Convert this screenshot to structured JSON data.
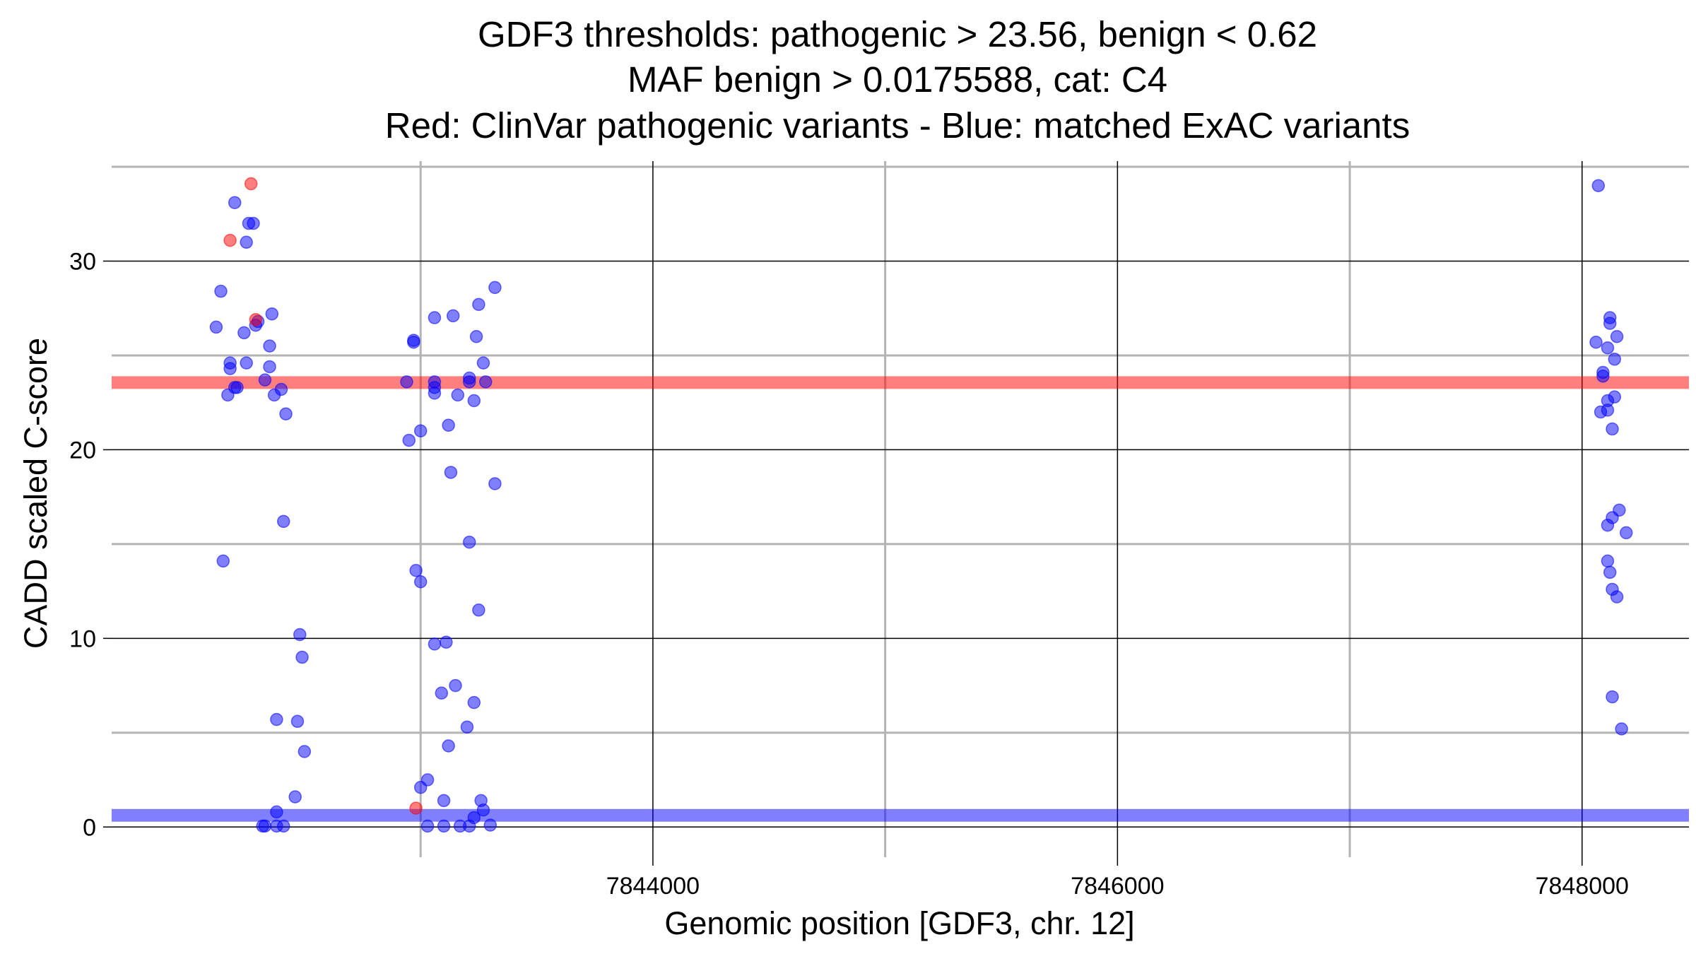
{
  "chart_data": {
    "type": "scatter",
    "title_lines": [
      "GDF3 thresholds: pathogenic > 23.56, benign < 0.62",
      "MAF benign > 0.0175588, cat: C4",
      "Red: ClinVar pathogenic variants - Blue: matched ExAC variants"
    ],
    "xlabel": "Genomic position [GDF3, chr. 12]",
    "ylabel": "CADD scaled C-score",
    "xlim": [
      7841670,
      7848460
    ],
    "ylim": [
      -1.6,
      35.3
    ],
    "x_ticks": [
      7844000,
      7846000,
      7848000
    ],
    "x_tick_labels": [
      "7844000",
      "7846000",
      "7848000"
    ],
    "x_minor_gridlines": [
      7843000,
      7845000,
      7847000
    ],
    "y_ticks": [
      0,
      10,
      20,
      30
    ],
    "y_tick_labels": [
      "0",
      "10",
      "20",
      "30"
    ],
    "y_minor_gridlines": [
      5,
      15,
      25,
      35
    ],
    "grid": true,
    "colors": {
      "pathogenic": "#ff0000",
      "benign": "#0000ff",
      "major_grid": "#000000",
      "minor_grid": "#b3b3b3"
    },
    "thresholds": {
      "pathogenic": 23.56,
      "benign": 0.62
    },
    "series": [
      {
        "key": "clinvar_pathogenic",
        "color": "#ff0000",
        "points": [
          [
            7842270,
            34.1
          ],
          [
            7842180,
            31.1
          ],
          [
            7842290,
            26.9
          ],
          [
            7842980,
            1.0
          ]
        ]
      },
      {
        "key": "exac_matched",
        "color": "#0000ff",
        "points": [
          [
            7842200,
            33.1
          ],
          [
            7842250,
            31.0
          ],
          [
            7842260,
            32.0
          ],
          [
            7842280,
            32.0
          ],
          [
            7842140,
            28.4
          ],
          [
            7842120,
            26.5
          ],
          [
            7842180,
            24.6
          ],
          [
            7842180,
            24.3
          ],
          [
            7842250,
            24.6
          ],
          [
            7842210,
            23.3
          ],
          [
            7842200,
            23.3
          ],
          [
            7842170,
            22.9
          ],
          [
            7842240,
            26.2
          ],
          [
            7842290,
            26.6
          ],
          [
            7842300,
            26.8
          ],
          [
            7842330,
            23.7
          ],
          [
            7842350,
            25.5
          ],
          [
            7842350,
            24.4
          ],
          [
            7842360,
            27.2
          ],
          [
            7842370,
            22.9
          ],
          [
            7842400,
            23.2
          ],
          [
            7842420,
            21.9
          ],
          [
            7842410,
            16.2
          ],
          [
            7842150,
            14.1
          ],
          [
            7842380,
            5.7
          ],
          [
            7842470,
            5.6
          ],
          [
            7842480,
            10.2
          ],
          [
            7842490,
            9.0
          ],
          [
            7842500,
            4.0
          ],
          [
            7842460,
            1.6
          ],
          [
            7842380,
            0.8
          ],
          [
            7842320,
            0.05
          ],
          [
            7842330,
            0.05
          ],
          [
            7842380,
            0.05
          ],
          [
            7842410,
            0.05
          ],
          [
            7842950,
            20.5
          ],
          [
            7842940,
            23.6
          ],
          [
            7842970,
            25.8
          ],
          [
            7842970,
            25.7
          ],
          [
            7842980,
            13.6
          ],
          [
            7843000,
            13.0
          ],
          [
            7843000,
            21.0
          ],
          [
            7843030,
            2.5
          ],
          [
            7843000,
            2.1
          ],
          [
            7843030,
            0.05
          ],
          [
            7843060,
            27.0
          ],
          [
            7843060,
            23.3
          ],
          [
            7843060,
            23.6
          ],
          [
            7843060,
            23.0
          ],
          [
            7843060,
            9.7
          ],
          [
            7843090,
            7.1
          ],
          [
            7843100,
            1.4
          ],
          [
            7843100,
            0.05
          ],
          [
            7843110,
            9.8
          ],
          [
            7843120,
            21.3
          ],
          [
            7843120,
            4.3
          ],
          [
            7843130,
            18.8
          ],
          [
            7843140,
            27.1
          ],
          [
            7843150,
            7.5
          ],
          [
            7843160,
            22.9
          ],
          [
            7843170,
            0.05
          ],
          [
            7843200,
            5.3
          ],
          [
            7843210,
            0.05
          ],
          [
            7843210,
            23.8
          ],
          [
            7843210,
            23.6
          ],
          [
            7843210,
            15.1
          ],
          [
            7843230,
            0.5
          ],
          [
            7843230,
            22.6
          ],
          [
            7843230,
            6.6
          ],
          [
            7843240,
            26.0
          ],
          [
            7843250,
            27.7
          ],
          [
            7843250,
            11.5
          ],
          [
            7843260,
            1.4
          ],
          [
            7843270,
            0.9
          ],
          [
            7843270,
            24.6
          ],
          [
            7843280,
            23.6
          ],
          [
            7843300,
            0.1
          ],
          [
            7843320,
            28.6
          ],
          [
            7843320,
            18.2
          ],
          [
            7848070,
            34.0
          ],
          [
            7848060,
            25.7
          ],
          [
            7848090,
            24.1
          ],
          [
            7848090,
            23.9
          ],
          [
            7848080,
            22.0
          ],
          [
            7848110,
            22.1
          ],
          [
            7848110,
            22.6
          ],
          [
            7848110,
            25.4
          ],
          [
            7848120,
            26.7
          ],
          [
            7848120,
            27.0
          ],
          [
            7848140,
            24.8
          ],
          [
            7848150,
            26.0
          ],
          [
            7848140,
            22.8
          ],
          [
            7848130,
            21.1
          ],
          [
            7848110,
            16.0
          ],
          [
            7848130,
            16.4
          ],
          [
            7848160,
            16.8
          ],
          [
            7848190,
            15.6
          ],
          [
            7848110,
            14.1
          ],
          [
            7848120,
            13.5
          ],
          [
            7848130,
            12.6
          ],
          [
            7848150,
            12.2
          ],
          [
            7848130,
            6.9
          ],
          [
            7848170,
            5.2
          ]
        ]
      }
    ]
  }
}
